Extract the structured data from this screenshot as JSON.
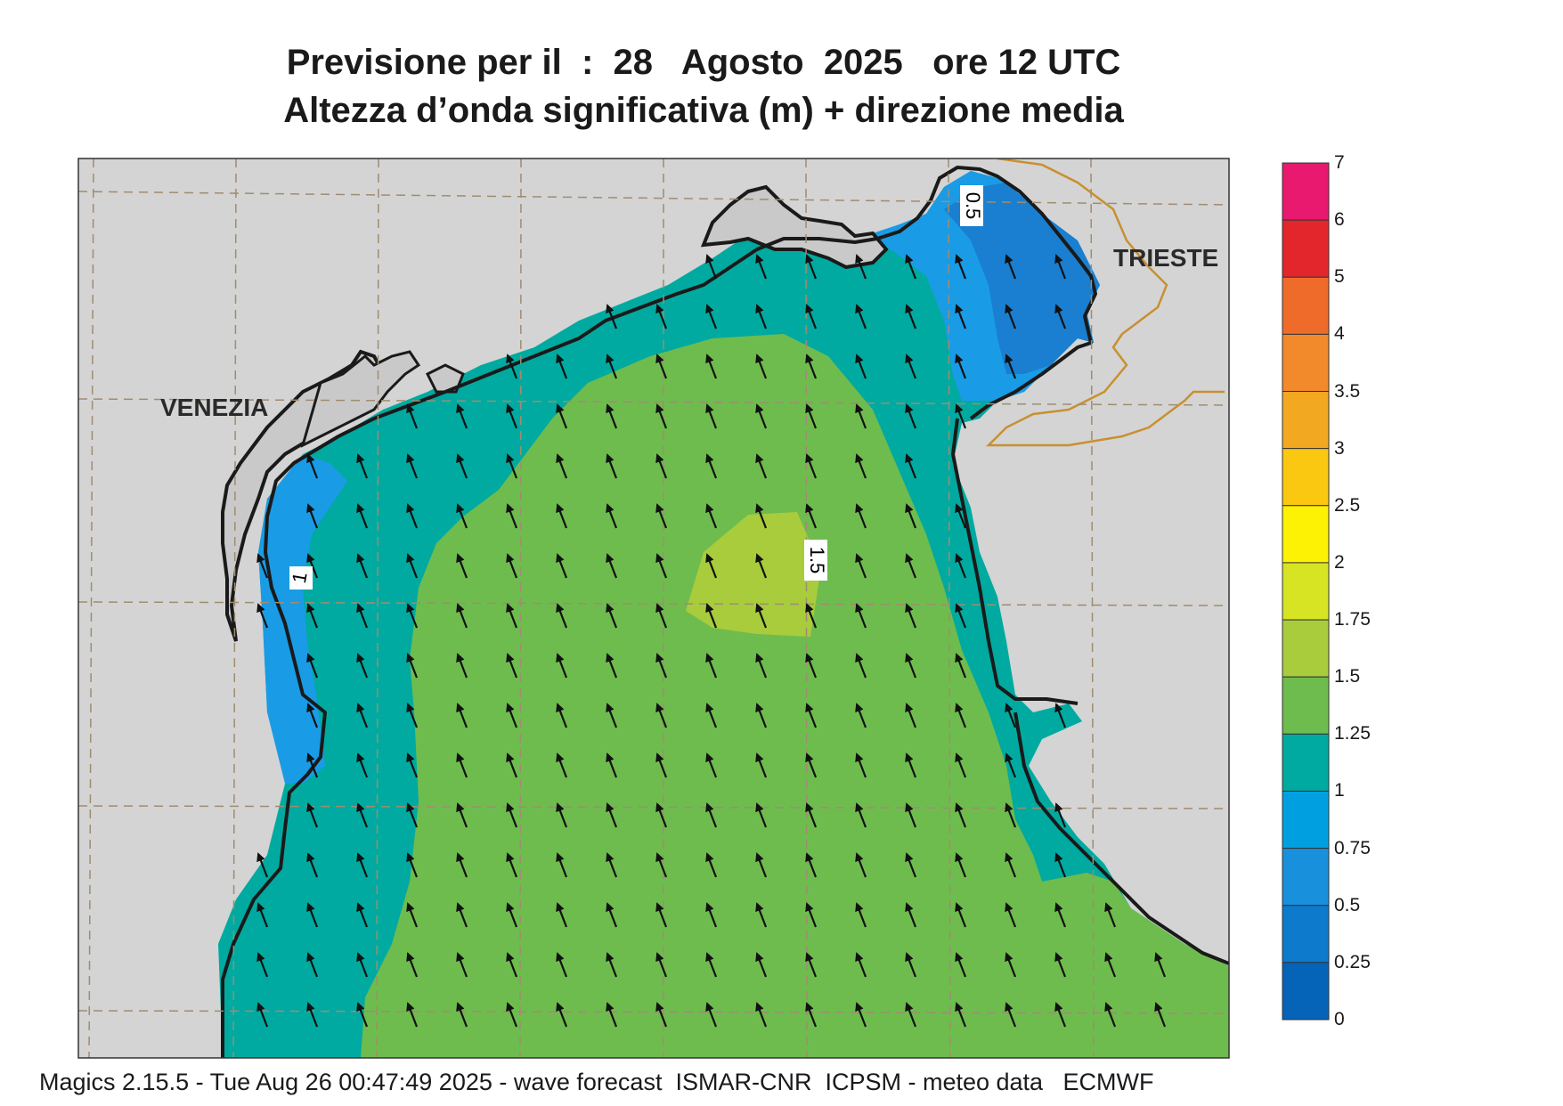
{
  "title": {
    "line1": "Previsione per il  :  28   Agosto  2025   ore 12 UTC",
    "line2": "Altezza d’onda significativa (m) + direzione media"
  },
  "places": {
    "venezia": "VENEZIA",
    "trieste": "TRIESTE"
  },
  "contour_labels": [
    "0.5",
    "1",
    "1.5"
  ],
  "colorbar": {
    "labels": [
      "7",
      "6",
      "5",
      "4",
      "3.5",
      "3",
      "2.5",
      "2",
      "1.75",
      "1.5",
      "1.25",
      "1",
      "0.75",
      "0.5",
      "0.25",
      "0"
    ],
    "colors": [
      "#e8196e",
      "#e2262b",
      "#ef6b2a",
      "#f2892a",
      "#f3a821",
      "#fac711",
      "#fdf104",
      "#d6e424",
      "#a8cc3c",
      "#6ebc4e",
      "#00aaa0",
      "#00a0e0",
      "#1890dc",
      "#0d7acb",
      "#0563b8"
    ]
  },
  "land": {
    "land_color": "#d4d4d4",
    "coast_color": "#1a1a1a",
    "border_color": "#c89030",
    "grid_color": "#a08c70"
  },
  "wave_zones": {
    "0.5-0.75": "#1a7fd0",
    "0.75-1": "#1a9be6",
    "1-1.25": "#00aaa0",
    "1.25-1.5": "#6ebc4e",
    "1.5-1.75": "#a8cc3c"
  },
  "footer": "Magics 2.15.5 - Tue Aug 26 00:47:49 2025 - wave forecast  ISMAR-CNR  ICPSM - meteo data   ECMWF"
}
